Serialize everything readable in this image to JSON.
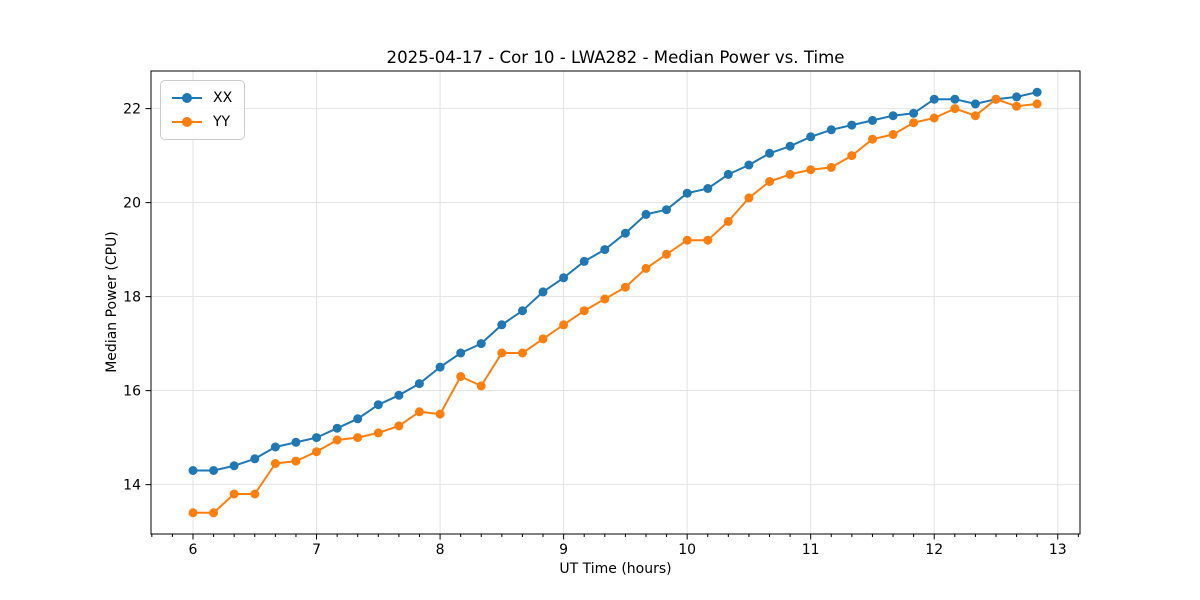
{
  "chart_data": {
    "type": "line",
    "title": "2025-04-17 - Cor 10 - LWA282 - Median Power vs. Time",
    "xlabel": "UT Time (hours)",
    "ylabel": "Median Power (CPU)",
    "xlim": [
      5.66,
      13.18
    ],
    "ylim": [
      12.95,
      22.8
    ],
    "x_major_ticks": [
      6,
      7,
      8,
      9,
      10,
      11,
      12,
      13
    ],
    "x_minor_step_hours": 0.1667,
    "y_major_ticks": [
      14,
      16,
      18,
      20,
      22
    ],
    "grid": true,
    "grid_color": "#e2e2e2",
    "axis_color": "#000000",
    "legend_position": "upper-left",
    "marker": "circle",
    "x": [
      6.0,
      6.167,
      6.333,
      6.5,
      6.667,
      6.833,
      7.0,
      7.167,
      7.333,
      7.5,
      7.667,
      7.833,
      8.0,
      8.167,
      8.333,
      8.5,
      8.667,
      8.833,
      9.0,
      9.167,
      9.333,
      9.5,
      9.667,
      9.833,
      10.0,
      10.167,
      10.333,
      10.5,
      10.667,
      10.833,
      11.0,
      11.167,
      11.333,
      11.5,
      11.667,
      11.833,
      12.0,
      12.167,
      12.333,
      12.5,
      12.667,
      12.833
    ],
    "series": [
      {
        "name": "XX",
        "color": "#1f77b4",
        "values": [
          14.3,
          14.3,
          14.4,
          14.55,
          14.8,
          14.9,
          15.0,
          15.2,
          15.4,
          15.7,
          15.9,
          16.15,
          16.5,
          16.8,
          17.0,
          17.4,
          17.7,
          18.1,
          18.4,
          18.75,
          19.0,
          19.35,
          19.75,
          19.85,
          20.2,
          20.3,
          20.6,
          20.8,
          21.05,
          21.2,
          21.4,
          21.55,
          21.65,
          21.75,
          21.85,
          21.9,
          22.2,
          22.2,
          22.1,
          22.2,
          22.25,
          22.35
        ]
      },
      {
        "name": "YY",
        "color": "#ff7f0e",
        "values": [
          13.4,
          13.4,
          13.8,
          13.8,
          14.45,
          14.5,
          14.7,
          14.95,
          15.0,
          15.1,
          15.25,
          15.55,
          15.5,
          16.3,
          16.1,
          16.8,
          16.8,
          17.1,
          17.4,
          17.7,
          17.95,
          18.2,
          18.6,
          18.9,
          19.2,
          19.2,
          19.6,
          20.1,
          20.45,
          20.6,
          20.7,
          20.75,
          21.0,
          21.35,
          21.45,
          21.7,
          21.8,
          22.0,
          21.85,
          22.2,
          22.05,
          22.1
        ]
      }
    ]
  }
}
